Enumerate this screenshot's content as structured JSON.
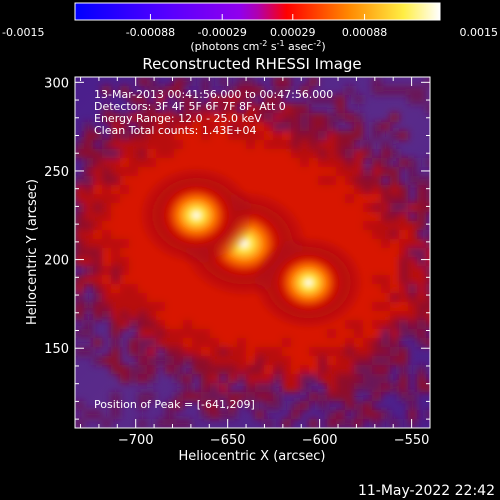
{
  "colorbar": {
    "tick_labels": [
      "-0.0015",
      "-0.00088",
      "-0.00029",
      "0.00029",
      "0.00088",
      "0.0015"
    ],
    "tick_values": [
      -0.0015,
      -0.00088,
      -0.00029,
      0.00029,
      0.00088,
      0.0015
    ],
    "range": [
      -0.0015,
      0.0015
    ],
    "units_main": "(photons cm",
    "units_sup1": "-2",
    "units_mid": " s",
    "units_sup2": "-1",
    "units_end": " asec",
    "units_sup3": "-2",
    "units_close": ")"
  },
  "chart_data": {
    "type": "heatmap",
    "title": "Reconstructed RHESSI Image",
    "xlabel": "Heliocentric X (arcsec)",
    "ylabel": "Heliocentric Y (arcsec)",
    "xlim": [
      -733,
      -540
    ],
    "ylim": [
      105,
      303
    ],
    "x_ticks": [
      -700,
      -650,
      -600,
      -550
    ],
    "y_ticks": [
      150,
      200,
      250,
      300
    ],
    "x_tick_labels": [
      "−700",
      "−650",
      "−600",
      "−550"
    ],
    "y_tick_labels": [
      "150",
      "200",
      "250",
      "300"
    ],
    "sources": [
      {
        "x": -641,
        "y": 209,
        "intensity": 1.0
      },
      {
        "x": -667,
        "y": 225,
        "intensity": 0.9
      },
      {
        "x": -606,
        "y": 187,
        "intensity": 0.85
      }
    ],
    "annotations": [
      "13-Mar-2013 00:41:56.000 to 00:47:56.000",
      "Detectors: 3F 4F 5F 6F 7F 8F, Att 0",
      "Energy Range: 12.0 - 25.0 keV",
      "Clean     Total counts: 1.43E+04"
    ],
    "peak_label": "Position of Peak = [-641,209]",
    "colormap_colors": [
      "#0000ff",
      "#3c00ff",
      "#5a22a0",
      "#5e2a88",
      "#cc1100",
      "#ff7700",
      "#ffe040",
      "#ffffff"
    ]
  },
  "timestamp": "11-May-2022 22:42"
}
